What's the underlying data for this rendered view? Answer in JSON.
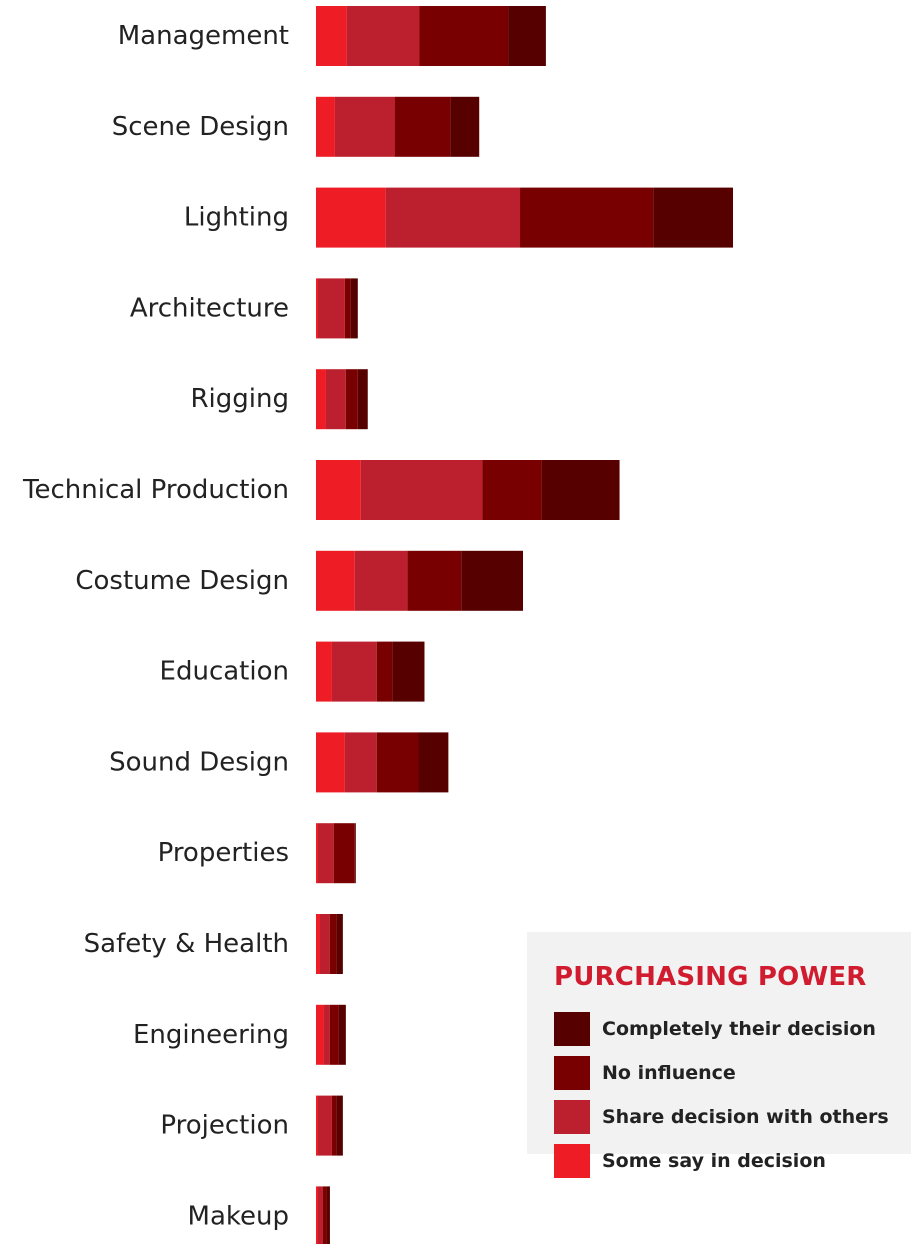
{
  "chart_data": {
    "type": "bar",
    "orientation": "horizontal",
    "stacked": true,
    "categories": [
      "Management",
      "Scene Design",
      "Lighting",
      "Architecture",
      "Rigging",
      "Technical Production",
      "Costume Design",
      "Education",
      "Sound Design",
      "Properties",
      "Safety & Health",
      "Engineering",
      "Projection",
      "Makeup"
    ],
    "series": [
      {
        "name": "Some say in decision",
        "color": "#ee1c25",
        "values": [
          31,
          19,
          70,
          2,
          10,
          45,
          39,
          16,
          29,
          2,
          4,
          8,
          2,
          2
        ]
      },
      {
        "name": "Share decision with others",
        "color": "#bc202e",
        "values": [
          73,
          60,
          135,
          27,
          20,
          122,
          53,
          45,
          32,
          16,
          10,
          6,
          14,
          5
        ]
      },
      {
        "name": "No influence",
        "color": "#790000",
        "values": [
          89,
          56,
          134,
          6,
          12,
          60,
          54,
          16,
          42,
          21,
          7,
          9,
          5,
          4
        ]
      },
      {
        "name": "Completely their decision",
        "color": "#560000",
        "values": [
          38,
          29,
          80,
          7,
          10,
          78,
          62,
          32,
          30,
          1,
          6,
          7,
          6,
          3
        ]
      }
    ],
    "legend_title": "PURCHASING POWER",
    "legend_placement": "bottom-right",
    "xlim": [
      0,
      420
    ],
    "grid": false,
    "title": "",
    "xlabel": "",
    "ylabel": ""
  }
}
